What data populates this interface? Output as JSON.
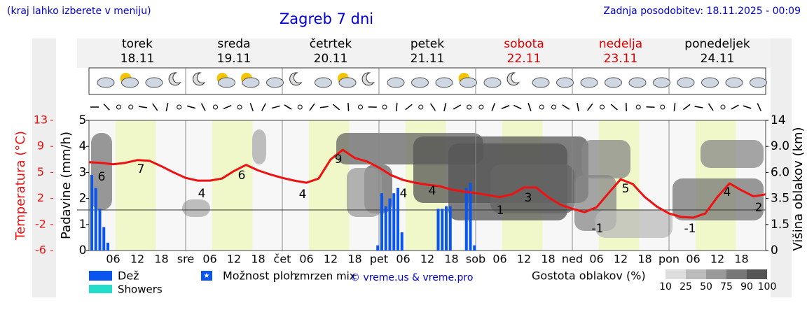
{
  "header": {
    "menu_note": "(kraj lahko izberete v meniju)",
    "title": "Zagreb 7 dni",
    "updated": "Zadnja posodobitev: 18.11.2025 - 00:09"
  },
  "days": [
    {
      "name": "torek",
      "date": "18.11",
      "color": "#000000"
    },
    {
      "name": "sreda",
      "date": "19.11",
      "color": "#000000"
    },
    {
      "name": "četrtek",
      "date": "20.11",
      "color": "#000000"
    },
    {
      "name": "petek",
      "date": "21.11",
      "color": "#000000"
    },
    {
      "name": "sobota",
      "date": "22.11",
      "color": "#dd0000"
    },
    {
      "name": "nedelja",
      "date": "23.11",
      "color": "#dd0000"
    },
    {
      "name": "ponedeljek",
      "date": "24.11",
      "color": "#000000"
    }
  ],
  "chart_data": {
    "type": "meteogram",
    "x_labels": [
      "06",
      "12",
      "18",
      "sre",
      "06",
      "12",
      "18",
      "čet",
      "06",
      "12",
      "18",
      "pet",
      "06",
      "12",
      "18",
      "sob",
      "06",
      "12",
      "18",
      "ned",
      "06",
      "12",
      "18",
      "pon",
      "06",
      "12",
      "18"
    ],
    "temperature": {
      "label": "Temperatura (°C)",
      "color": "#ee1111",
      "values": [
        6.9,
        6.8,
        6.6,
        6.8,
        7.2,
        7.1,
        6.3,
        5.4,
        4.6,
        4.2,
        4.2,
        4.5,
        5.6,
        6.5,
        5.7,
        5.1,
        4.6,
        4.2,
        3.9,
        4.5,
        7.3,
        8.7,
        7.5,
        7.0,
        6.1,
        5.0,
        4.3,
        3.9,
        3.6,
        3.4,
        2.9,
        2.6,
        2.4,
        2.1,
        1.8,
        2.2,
        3.2,
        3.2,
        1.8,
        0.7,
        0.1,
        -0.4,
        0.3,
        2.4,
        4.4,
        3.7,
        1.8,
        0.4,
        -0.6,
        -1.1,
        -1.2,
        -0.6,
        1.8,
        3.8,
        2.8,
        1.9,
        2.2
      ],
      "annotations": [
        "6",
        "7",
        "4",
        "6",
        "4",
        "9",
        "4",
        "4",
        "1",
        "3",
        "-1",
        "5",
        "-1",
        "4",
        "2"
      ],
      "ylim": [
        -6,
        13
      ],
      "yticks": [
        -6,
        {
          "value": -2.2,
          "label": "-2"
        },
        {
          "value": 1.6,
          "label": "2"
        },
        {
          "value": 5.4,
          "label": "5"
        },
        {
          "value": 9.2,
          "label": "9"
        },
        13
      ]
    },
    "precipitation": {
      "label": "Padavine (mm/h)",
      "color": "#0a55ee",
      "values": [
        2.9,
        2.4,
        1.6,
        0.9,
        0.3,
        0,
        0,
        0,
        0,
        0,
        0,
        0,
        0,
        0,
        0,
        0,
        0,
        0,
        0,
        0,
        0,
        0,
        0,
        0,
        0,
        0,
        0,
        0,
        0,
        0,
        0,
        0,
        0,
        0,
        0,
        0,
        0,
        0,
        0,
        0,
        0,
        0,
        0,
        0,
        0,
        0,
        0,
        0,
        0,
        0,
        0,
        0,
        0,
        0,
        0,
        0,
        0,
        0,
        0,
        0,
        0,
        0,
        0,
        0,
        0,
        0,
        0,
        0,
        0,
        0,
        0,
        0.2,
        2.2,
        1.7,
        2.0,
        2.2,
        2.4,
        0.7,
        0,
        0,
        0,
        0,
        0,
        0,
        0,
        0,
        1.6,
        1.6,
        1.7,
        1.7,
        0,
        0,
        0,
        2.4,
        2.6,
        0.2,
        0,
        0,
        0,
        0,
        0,
        0,
        0,
        0,
        0,
        0,
        0,
        0,
        0,
        0,
        0,
        0,
        0,
        0,
        0,
        0,
        0,
        0,
        0,
        0,
        0,
        0,
        0,
        0,
        0,
        0,
        0,
        0,
        0,
        0,
        0,
        0,
        0,
        0,
        0,
        0,
        0,
        0,
        0,
        0,
        0,
        0,
        0,
        0,
        0,
        0,
        0,
        0,
        0,
        0,
        0,
        0,
        0,
        0,
        0,
        0,
        0,
        0,
        0,
        0,
        0,
        0,
        0,
        0,
        0,
        0,
        0,
        0
      ],
      "ylim": [
        0,
        5
      ],
      "yticks": [
        0,
        1,
        2,
        3,
        4,
        5
      ]
    },
    "cloud_height": {
      "label": "Višina oblakov (km)",
      "yticks": [
        0,
        1.5,
        3.5,
        {
          "value": 6,
          "label": "6.0"
        },
        {
          "value": 9,
          "label": "9.0"
        },
        14
      ]
    },
    "legend": {
      "rain": "Dež",
      "showers": "Showers",
      "possible_showers": "Možnost ploh",
      "frozen_mix": "zmrzen mix",
      "credit": "© vreme.us & vreme.pro",
      "cloud_density_title": "Gostota oblakov (%)",
      "cloud_density_levels": [
        10,
        25,
        50,
        75,
        90,
        100
      ]
    }
  }
}
